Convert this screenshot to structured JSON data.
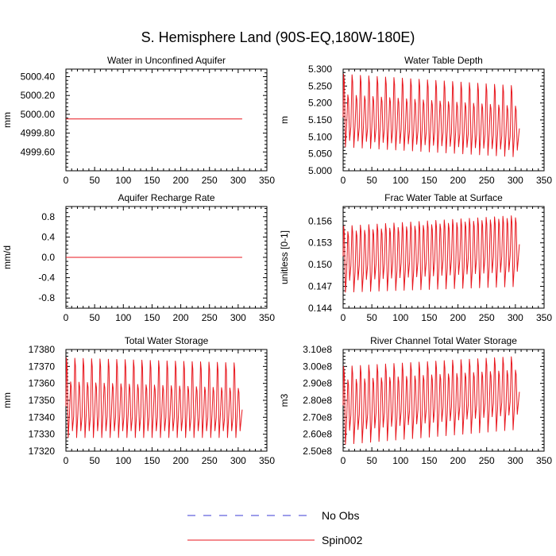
{
  "figure_title": "S. Hemisphere Land (90S-EQ,180W-180E)",
  "legend": [
    {
      "label": "No Obs",
      "color": "#3b3bd6",
      "dash": true
    },
    {
      "label": "Spin002",
      "color": "#e8161d",
      "dash": false
    }
  ],
  "chart_data": [
    {
      "type": "line",
      "title": "Water in Unconfined Aquifer",
      "xlabel": "",
      "ylabel": "mm",
      "xlim": [
        0,
        350
      ],
      "ylim": [
        4999.4,
        5000.48
      ],
      "xticks": [
        0,
        50,
        100,
        150,
        200,
        250,
        300,
        350
      ],
      "yticks": [
        4999.6,
        4999.8,
        5000.0,
        5000.2,
        5000.4
      ],
      "ytick_labels": [
        "4999.60",
        "4999.80",
        "5000.00",
        "5000.20",
        "5000.40"
      ],
      "series": [
        {
          "name": "Spin002",
          "kind": "flat",
          "x_range": [
            0,
            307
          ],
          "value": 4999.95
        }
      ]
    },
    {
      "type": "line",
      "title": "Water Table Depth",
      "xlabel": "",
      "ylabel": "m",
      "xlim": [
        0,
        350
      ],
      "ylim": [
        5.0,
        5.3
      ],
      "xticks": [
        0,
        50,
        100,
        150,
        200,
        250,
        300,
        350
      ],
      "yticks": [
        5.0,
        5.05,
        5.1,
        5.15,
        5.2,
        5.25,
        5.3
      ],
      "ytick_labels": [
        "5.000",
        "5.050",
        "5.100",
        "5.150",
        "5.200",
        "5.250",
        "5.300"
      ],
      "series": [
        {
          "name": "Spin002",
          "kind": "seasonal",
          "x_range": [
            0,
            307
          ],
          "period": 7.3,
          "outer_start": [
            5.07,
            5.285
          ],
          "outer_end": [
            5.04,
            5.25
          ],
          "inner_start": [
            5.09,
            5.225
          ],
          "inner_end": [
            5.06,
            5.19
          ]
        }
      ]
    },
    {
      "type": "line",
      "title": "Aquifer Recharge Rate",
      "xlabel": "",
      "ylabel": "mm/d",
      "xlim": [
        0,
        350
      ],
      "ylim": [
        -1.0,
        1.0
      ],
      "xticks": [
        0,
        50,
        100,
        150,
        200,
        250,
        300,
        350
      ],
      "yticks": [
        -0.8,
        -0.4,
        0.0,
        0.4,
        0.8
      ],
      "ytick_labels": [
        "-0.8",
        "-0.4",
        "0.0",
        "0.4",
        "0.8"
      ],
      "series": [
        {
          "name": "Spin002",
          "kind": "flat",
          "x_range": [
            0,
            307
          ],
          "value": 0.0
        }
      ]
    },
    {
      "type": "line",
      "title": "Frac Water Table at Surface",
      "xlabel": "",
      "ylabel": "unitless [0-1]",
      "xlim": [
        0,
        350
      ],
      "ylim": [
        0.144,
        0.158
      ],
      "xticks": [
        0,
        50,
        100,
        150,
        200,
        250,
        300,
        350
      ],
      "yticks": [
        0.144,
        0.147,
        0.15,
        0.153,
        0.156
      ],
      "ytick_labels": [
        "0.144",
        "0.147",
        "0.150",
        "0.153",
        "0.156"
      ],
      "series": [
        {
          "name": "Spin002",
          "kind": "seasonal",
          "x_range": [
            0,
            307
          ],
          "period": 7.3,
          "outer_start": [
            0.1462,
            0.1553
          ],
          "outer_end": [
            0.147,
            0.1568
          ],
          "inner_start": [
            0.1478,
            0.1545
          ],
          "inner_end": [
            0.1491,
            0.1565
          ]
        }
      ]
    },
    {
      "type": "line",
      "title": "Total Water Storage",
      "xlabel": "",
      "ylabel": "mm",
      "xlim": [
        0,
        350
      ],
      "ylim": [
        17320,
        17380
      ],
      "xticks": [
        0,
        50,
        100,
        150,
        200,
        250,
        300,
        350
      ],
      "yticks": [
        17320,
        17330,
        17340,
        17350,
        17360,
        17370,
        17380
      ],
      "ytick_labels": [
        "17320",
        "17330",
        "17340",
        "17350",
        "17360",
        "17370",
        "17380"
      ],
      "series": [
        {
          "name": "Spin002",
          "kind": "seasonal",
          "x_range": [
            0,
            307
          ],
          "period": 7.3,
          "outer_start": [
            17328,
            17375
          ],
          "outer_end": [
            17328,
            17372
          ],
          "inner_start": [
            17332,
            17361
          ],
          "inner_end": [
            17332,
            17357
          ]
        }
      ]
    },
    {
      "type": "line",
      "title": "River Channel Total Water Storage",
      "xlabel": "",
      "ylabel": "m3",
      "xlim": [
        0,
        350
      ],
      "ylim": [
        250000000.0,
        310000000.0
      ],
      "xticks": [
        0,
        50,
        100,
        150,
        200,
        250,
        300,
        350
      ],
      "yticks": [
        250000000.0,
        260000000.0,
        270000000.0,
        280000000.0,
        290000000.0,
        300000000.0,
        310000000.0
      ],
      "ytick_labels": [
        "2.50e8",
        "2.60e8",
        "2.70e8",
        "2.80e8",
        "2.90e8",
        "3.00e8",
        "3.10e8"
      ],
      "series": [
        {
          "name": "Spin002",
          "kind": "seasonal",
          "x_range": [
            0,
            307
          ],
          "period": 7.3,
          "outer_start": [
            254000000.0,
            300000000.0
          ],
          "outer_end": [
            263000000.0,
            306000000.0
          ],
          "inner_start": [
            262000000.0,
            292000000.0
          ],
          "inner_end": [
            272000000.0,
            298000000.0
          ]
        }
      ]
    }
  ]
}
